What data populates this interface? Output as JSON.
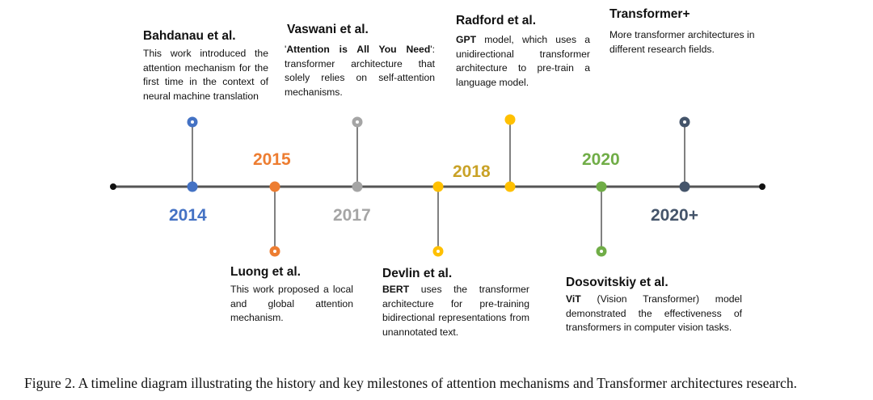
{
  "colors": {
    "axis": "#555555",
    "c2014": "#4472c4",
    "c2015": "#ed7d31",
    "c2017": "#a5a5a5",
    "c2018": "#ffc000",
    "c2020": "#70ad47",
    "c2020plus": "#44546a"
  },
  "years": {
    "y2014": "2014",
    "y2015": "2015",
    "y2017": "2017",
    "y2018": "2018",
    "y2020": "2020",
    "y2020plus": "2020+"
  },
  "milestones": {
    "bahdanau": {
      "author": "Bahdanau et al.",
      "desc": "This work introduced the attention mechanism for the first time in the context of neural machine translation"
    },
    "luong": {
      "author": "Luong et al.",
      "desc": "This work proposed a local and global attention mechanism."
    },
    "vaswani": {
      "author": "Vaswani et al.",
      "quote_open": "'",
      "bold": "Attention is All You Need",
      "quote_close": "':",
      "desc": " transformer architecture that solely relies on self-attention mechanisms."
    },
    "devlin": {
      "author": "Devlin et al.",
      "bold": "BERT",
      "desc": " uses the transformer architecture for pre-training bidirectional representations from unannotated text."
    },
    "radford": {
      "author": "Radford et al.",
      "bold": "GPT",
      "desc": " model, which uses a unidirectional transformer architecture to pre-train a language model."
    },
    "dosovitskiy": {
      "author": "Dosovitskiy et al.",
      "bold": "ViT",
      "desc": " (Vision Transformer) model demonstrated the effectiveness of transformers in computer vision tasks."
    },
    "transformerplus": {
      "author": "Transformer+",
      "desc": "More transformer architectures in different research fields."
    }
  },
  "caption": "Figure 2.   A timeline diagram illustrating the history and key milestones of attention mechanisms and Transformer architectures research."
}
